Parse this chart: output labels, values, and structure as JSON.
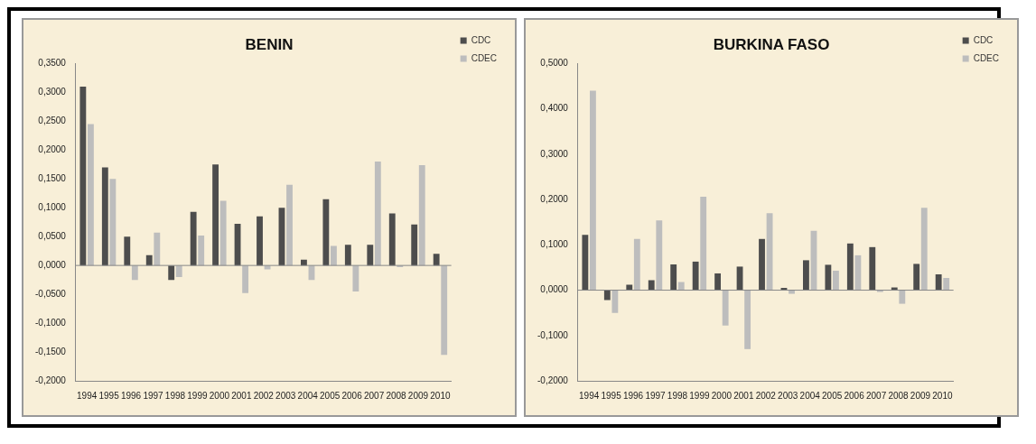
{
  "chart_data": [
    {
      "type": "bar",
      "title": "BENIN",
      "categories": [
        "1994",
        "1995",
        "1996",
        "1997",
        "1998",
        "1999",
        "2000",
        "2001",
        "2002",
        "2003",
        "2004",
        "2005",
        "2006",
        "2007",
        "2008",
        "2009",
        "2010"
      ],
      "series": [
        {
          "name": "CDC",
          "color": "#4d4d4d",
          "values": [
            0.31,
            0.17,
            0.05,
            0.018,
            -0.025,
            0.093,
            0.175,
            0.072,
            0.085,
            0.1,
            0.01,
            0.115,
            0.036,
            0.036,
            0.09,
            0.071,
            0.02
          ]
        },
        {
          "name": "CDEC",
          "color": "#bdbdbd",
          "values": [
            0.245,
            0.15,
            -0.025,
            0.057,
            -0.02,
            0.052,
            0.112,
            -0.048,
            -0.007,
            0.14,
            -0.025,
            0.034,
            -0.045,
            0.18,
            -0.003,
            0.174,
            -0.155
          ]
        }
      ],
      "ylim": [
        -0.2,
        0.35
      ],
      "yticks": [
        {
          "value": -0.2,
          "label": "-0,2000"
        },
        {
          "value": -0.15,
          "label": "-0,1500"
        },
        {
          "value": -0.1,
          "label": "-0,1000"
        },
        {
          "value": -0.05,
          "label": "-0,0500"
        },
        {
          "value": 0,
          "label": "0,0000"
        },
        {
          "value": 0.05,
          "label": "0,0500"
        },
        {
          "value": 0.1,
          "label": "0,1000"
        },
        {
          "value": 0.15,
          "label": "0,1500"
        },
        {
          "value": 0.2,
          "label": "0,2000"
        },
        {
          "value": 0.25,
          "label": "0,2500"
        },
        {
          "value": 0.3,
          "label": "0,3000"
        },
        {
          "value": 0.35,
          "label": "0,3500"
        }
      ],
      "legend": "top right"
    },
    {
      "type": "bar",
      "title": "BURKINA FASO",
      "categories": [
        "1994",
        "1995",
        "1996",
        "1997",
        "1998",
        "1999",
        "2000",
        "2001",
        "2002",
        "2003",
        "2004",
        "2005",
        "2006",
        "2007",
        "2008",
        "2009",
        "2010"
      ],
      "series": [
        {
          "name": "CDC",
          "color": "#4d4d4d",
          "values": [
            0.122,
            -0.022,
            0.012,
            0.022,
            0.057,
            0.063,
            0.037,
            0.052,
            0.113,
            0.005,
            0.066,
            0.056,
            0.103,
            0.095,
            0.006,
            0.058,
            0.035
          ]
        },
        {
          "name": "CDEC",
          "color": "#bdbdbd",
          "values": [
            0.44,
            -0.05,
            0.113,
            0.154,
            0.018,
            0.206,
            -0.078,
            -0.13,
            0.17,
            -0.008,
            0.131,
            0.043,
            0.077,
            -0.004,
            -0.03,
            0.182,
            0.027
          ]
        }
      ],
      "ylim": [
        -0.2,
        0.5
      ],
      "yticks": [
        {
          "value": -0.2,
          "label": "-0,2000"
        },
        {
          "value": -0.1,
          "label": "-0,1000"
        },
        {
          "value": 0,
          "label": "0,0000"
        },
        {
          "value": 0.1,
          "label": "0,1000"
        },
        {
          "value": 0.2,
          "label": "0,2000"
        },
        {
          "value": 0.3,
          "label": "0,3000"
        },
        {
          "value": 0.4,
          "label": "0,4000"
        },
        {
          "value": 0.5,
          "label": "0,5000"
        }
      ],
      "legend": "top right"
    }
  ]
}
